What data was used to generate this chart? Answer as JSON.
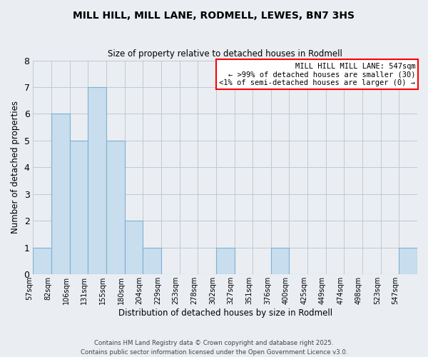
{
  "title": "MILL HILL, MILL LANE, RODMELL, LEWES, BN7 3HS",
  "subtitle": "Size of property relative to detached houses in Rodmell",
  "xlabel": "Distribution of detached houses by size in Rodmell",
  "ylabel": "Number of detached properties",
  "bin_labels": [
    "57sqm",
    "82sqm",
    "106sqm",
    "131sqm",
    "155sqm",
    "180sqm",
    "204sqm",
    "229sqm",
    "253sqm",
    "278sqm",
    "302sqm",
    "327sqm",
    "351sqm",
    "376sqm",
    "400sqm",
    "425sqm",
    "449sqm",
    "474sqm",
    "498sqm",
    "523sqm",
    "547sqm"
  ],
  "bar_values": [
    1,
    6,
    5,
    7,
    5,
    2,
    1,
    0,
    0,
    0,
    1,
    0,
    0,
    1,
    0,
    0,
    0,
    0,
    0,
    0,
    1
  ],
  "bar_color": "#C8DDED",
  "bar_edge_color": "#7EB0D4",
  "ylim": [
    0,
    8
  ],
  "yticks": [
    0,
    1,
    2,
    3,
    4,
    5,
    6,
    7,
    8
  ],
  "legend_title": "MILL HILL MILL LANE: 547sqm",
  "legend_line1": "← >99% of detached houses are smaller (30)",
  "legend_line2": "<1% of semi-detached houses are larger (0) →",
  "footer_line1": "Contains HM Land Registry data © Crown copyright and database right 2025.",
  "footer_line2": "Contains public sector information licensed under the Open Government Licence v3.0.",
  "background_color": "#EAEEF2",
  "grid_color": "#C0C8D0"
}
